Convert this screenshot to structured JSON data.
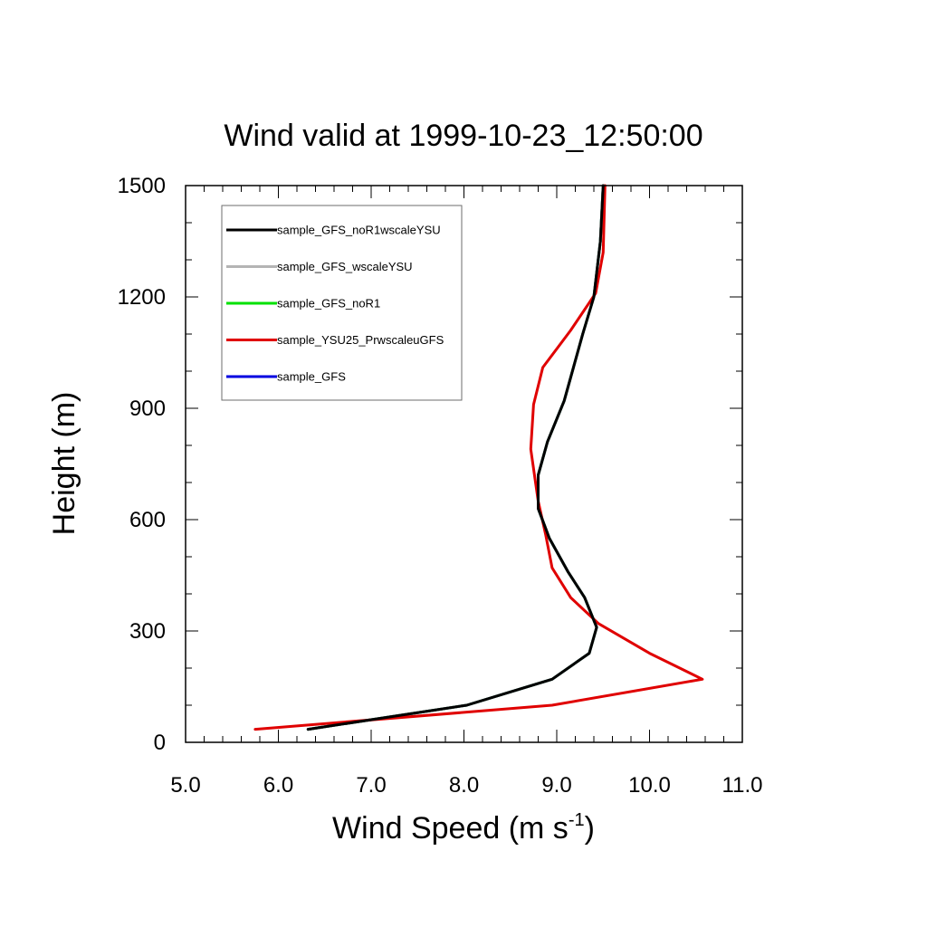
{
  "chart_data": {
    "type": "line",
    "title": "Wind valid at 1999-10-23_12:50:00",
    "xlabel": {
      "main": "Wind Speed (m s",
      "sup": "-1",
      "close": ")"
    },
    "ylabel": "Height (m)",
    "xlim": [
      5.0,
      11.0
    ],
    "ylim": [
      0,
      1500
    ],
    "x_ticks": [
      5.0,
      6.0,
      7.0,
      8.0,
      9.0,
      10.0,
      11.0
    ],
    "x_tick_labels": [
      "5.0",
      "6.0",
      "7.0",
      "8.0",
      "9.0",
      "10.0",
      "11.0"
    ],
    "y_ticks": [
      0,
      300,
      600,
      900,
      1200,
      1500
    ],
    "y_tick_labels": [
      "0",
      "300",
      "600",
      "900",
      "1200",
      "1500"
    ],
    "grid": false,
    "legend_position": "top-left",
    "series": [
      {
        "name": "sample_GFS_noR1wscaleYSU",
        "color": "#000000",
        "x": [
          6.32,
          8.03,
          8.95,
          9.35,
          9.43,
          9.3,
          9.12,
          8.92,
          8.8,
          8.8,
          8.9,
          9.08,
          9.28,
          9.4,
          9.47,
          9.5
        ],
        "y": [
          35,
          100,
          170,
          240,
          310,
          390,
          460,
          550,
          630,
          720,
          810,
          920,
          1100,
          1200,
          1350,
          1500
        ]
      },
      {
        "name": "sample_GFS_wscaleYSU",
        "color": "#b4b4b4",
        "x": [
          6.32,
          8.03,
          8.95,
          9.35,
          9.43,
          9.3,
          9.12,
          8.92,
          8.8,
          8.8,
          8.9,
          9.08,
          9.28,
          9.4,
          9.47,
          9.5
        ],
        "y": [
          35,
          100,
          170,
          240,
          310,
          390,
          460,
          550,
          630,
          720,
          810,
          920,
          1100,
          1200,
          1350,
          1500
        ]
      },
      {
        "name": "sample_GFS_noR1",
        "color": "#00e000",
        "x": [
          6.32,
          8.03,
          8.95,
          9.35,
          9.43,
          9.3,
          9.12,
          8.92,
          8.8,
          8.8,
          8.9,
          9.08,
          9.28,
          9.4,
          9.47,
          9.5
        ],
        "y": [
          35,
          100,
          170,
          240,
          310,
          390,
          460,
          550,
          630,
          720,
          810,
          920,
          1100,
          1200,
          1350,
          1500
        ]
      },
      {
        "name": "sample_YSU25_PrwscaleuGFS",
        "color": "#e00000",
        "x": [
          5.75,
          8.95,
          10.57,
          10.0,
          9.45,
          9.15,
          8.95,
          8.88,
          8.8,
          8.72,
          8.75,
          8.85,
          9.15,
          9.42,
          9.5,
          9.52
        ],
        "y": [
          35,
          100,
          170,
          240,
          320,
          390,
          470,
          560,
          650,
          790,
          910,
          1010,
          1110,
          1210,
          1320,
          1500
        ]
      },
      {
        "name": "sample_GFS",
        "color": "#0000e0",
        "x": [
          6.32,
          8.03,
          8.95,
          9.35,
          9.43,
          9.3,
          9.12,
          8.92,
          8.8,
          8.8,
          8.9,
          9.08,
          9.28,
          9.4,
          9.47,
          9.5
        ],
        "y": [
          35,
          100,
          170,
          240,
          310,
          390,
          460,
          550,
          630,
          720,
          810,
          920,
          1100,
          1200,
          1350,
          1500
        ]
      }
    ],
    "draw_order": [
      4,
      2,
      1,
      3,
      0
    ]
  }
}
